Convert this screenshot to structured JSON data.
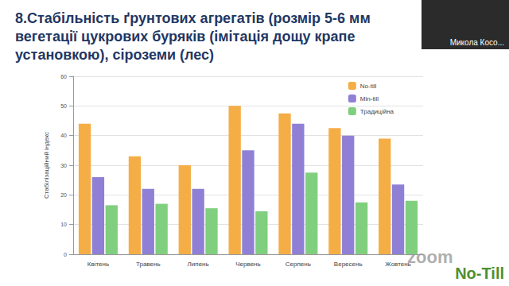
{
  "chart_data": {
    "type": "bar",
    "title": "8.Стабільність ґрунтових агрегатів (розмір 5-6 мм\nвегетації цукрових буряків (імітація дощу крапе\nустановкою), сіроземи (лес)",
    "y_label": "Стабілізаційний індекс",
    "categories": [
      "Квітень",
      "Травень",
      "Липень",
      "Червень",
      "Серпень",
      "Вересень",
      "Жовтень"
    ],
    "series": [
      {
        "name": "No-till",
        "color": "#f5ad45",
        "values": [
          44,
          33,
          30,
          50,
          47.5,
          42.5,
          39
        ]
      },
      {
        "name": "Min-till",
        "color": "#8f80d6",
        "values": [
          26,
          22,
          22,
          35,
          44,
          40,
          23.5
        ]
      },
      {
        "name": "Традиційна",
        "color": "#80cf7e",
        "values": [
          16.5,
          17,
          15.5,
          14.5,
          27.5,
          17.5,
          18
        ]
      }
    ],
    "ylim": [
      0,
      60
    ],
    "yticks": [
      0,
      10,
      20,
      30,
      40,
      50,
      60
    ],
    "grid": true,
    "legend": "top-right",
    "annotations": [
      "Микола Косо...",
      "zoom",
      "No-Till"
    ]
  }
}
